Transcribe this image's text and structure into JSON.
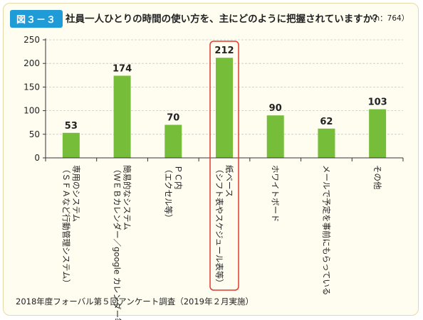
{
  "header": {
    "figure_label": "図３－３",
    "title": "社員一人ひとりの時間の使い方を、主にどのように把握されていますか？",
    "n": "（n：764）"
  },
  "footer": {
    "source": "2018年度フォーバル第５回アンケート調査（2019年２月実施）"
  },
  "colors": {
    "bar": "#76be3a",
    "highlight_box": "#e23a2d",
    "badge": "#1f9bd7",
    "axis": "#333333",
    "grid": "#c8c8c8"
  },
  "chart_data": {
    "type": "bar",
    "categories": [
      "専用のシステム（ＳＦＡなど行動管理システム）",
      "簡易的なシステム（ＷＥＢカレンダー／google カレンダー等）",
      "ＰＣ内（エクセル等）",
      "紙ベース（シフト表やスケジュール表等）",
      "ホワイトボード",
      "メールで予定を事前にもらっている",
      "その他"
    ],
    "values": [
      53,
      174,
      70,
      212,
      90,
      62,
      103
    ],
    "ylim": [
      0,
      250
    ],
    "yticks": [
      0,
      50,
      100,
      150,
      200,
      250
    ],
    "grid": true,
    "highlighted_category_index": 3,
    "xlabel": "",
    "ylabel": ""
  }
}
